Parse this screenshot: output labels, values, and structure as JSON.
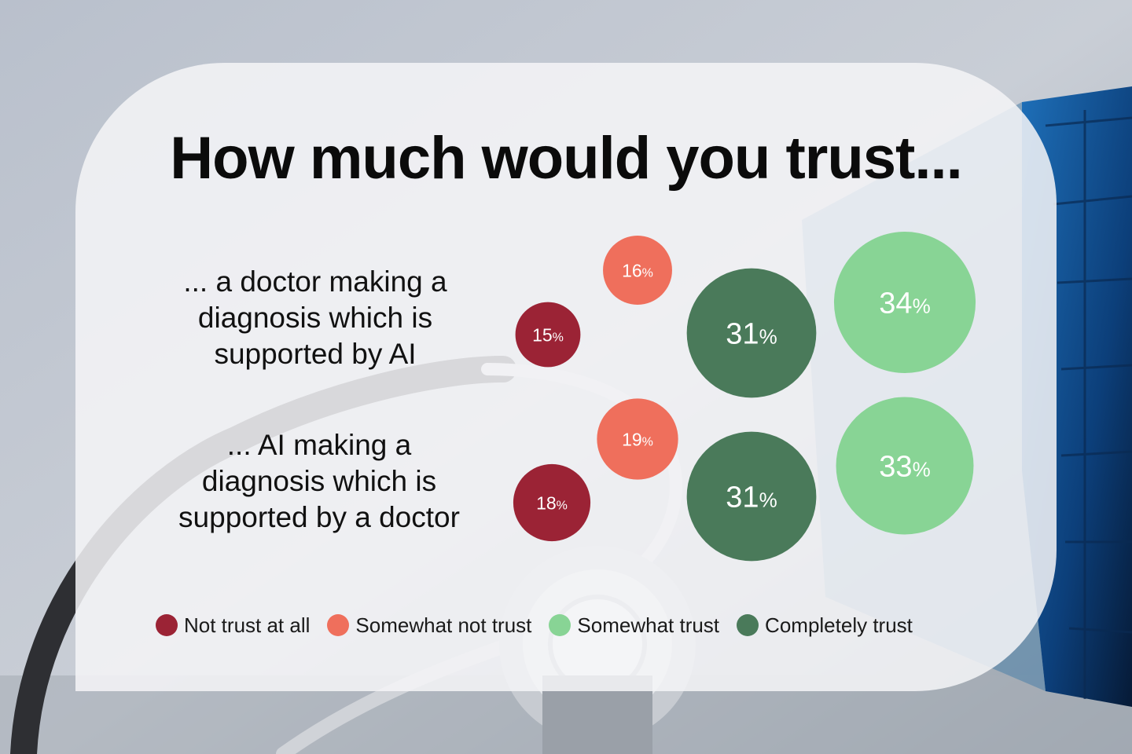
{
  "colors": {
    "not_trust_at_all": "#9b2335",
    "somewhat_not_trust": "#ef6f5c",
    "somewhat_trust": "#88d495",
    "completely_trust": "#4a7a5a"
  },
  "chart_data": {
    "type": "bubble",
    "title": "How much would you trust...",
    "unit": "%",
    "categories": [
      "... a doctor making a diagnosis which is supported by AI",
      "... AI making a diagnosis which is supported by a doctor"
    ],
    "series": [
      {
        "name": "Not trust at all",
        "values": [
          15,
          18
        ]
      },
      {
        "name": "Somewhat not trust",
        "values": [
          16,
          19
        ]
      },
      {
        "name": "Somewhat trust",
        "values": [
          34,
          33
        ]
      },
      {
        "name": "Completely trust",
        "values": [
          31,
          31
        ]
      }
    ],
    "legend_position": "bottom"
  },
  "labels": {
    "row_0_lines": [
      "... a doctor making a",
      "diagnosis which is",
      "supported by AI"
    ],
    "row_1_lines": [
      "... AI making a",
      "diagnosis which is",
      "supported by a doctor"
    ]
  }
}
